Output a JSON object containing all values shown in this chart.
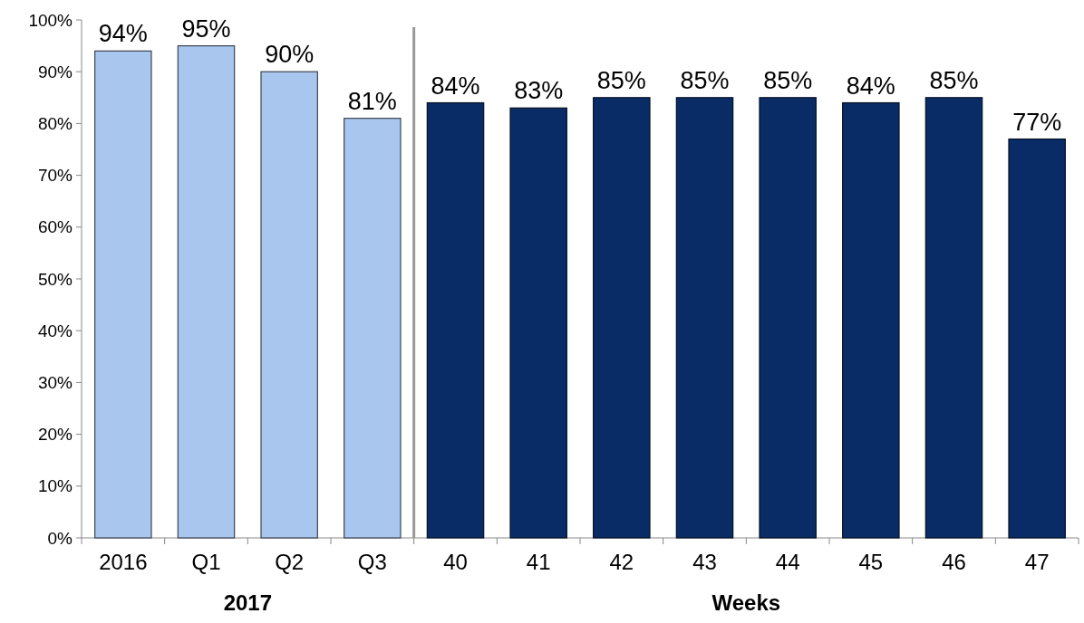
{
  "chart_data": {
    "type": "bar",
    "categories": [
      "2016",
      "Q1",
      "Q2",
      "Q3",
      "40",
      "41",
      "42",
      "43",
      "44",
      "45",
      "46",
      "47"
    ],
    "values": [
      94,
      95,
      90,
      81,
      84,
      83,
      85,
      85,
      85,
      84,
      85,
      77
    ],
    "colors": [
      "#a9c6ee",
      "#a9c6ee",
      "#a9c6ee",
      "#a9c6ee",
      "#0a2c66",
      "#0a2c66",
      "#0a2c66",
      "#0a2c66",
      "#0a2c66",
      "#0a2c66",
      "#0a2c66",
      "#0a2c66"
    ],
    "value_labels": [
      "94%",
      "95%",
      "90%",
      "81%",
      "84%",
      "83%",
      "85%",
      "85%",
      "85%",
      "84%",
      "85%",
      "77%"
    ],
    "ylim": [
      0,
      100
    ],
    "yticks": [
      {
        "value": 0,
        "label": "0%"
      },
      {
        "value": 10,
        "label": "10%"
      },
      {
        "value": 20,
        "label": "20%"
      },
      {
        "value": 30,
        "label": "30%"
      },
      {
        "value": 40,
        "label": "40%"
      },
      {
        "value": 50,
        "label": "50%"
      },
      {
        "value": 60,
        "label": "60%"
      },
      {
        "value": 70,
        "label": "70%"
      },
      {
        "value": 80,
        "label": "80%"
      },
      {
        "value": 90,
        "label": "90%"
      },
      {
        "value": 100,
        "label": "100%"
      }
    ],
    "annotations": [
      "2017",
      "Weeks"
    ],
    "grid": false
  }
}
